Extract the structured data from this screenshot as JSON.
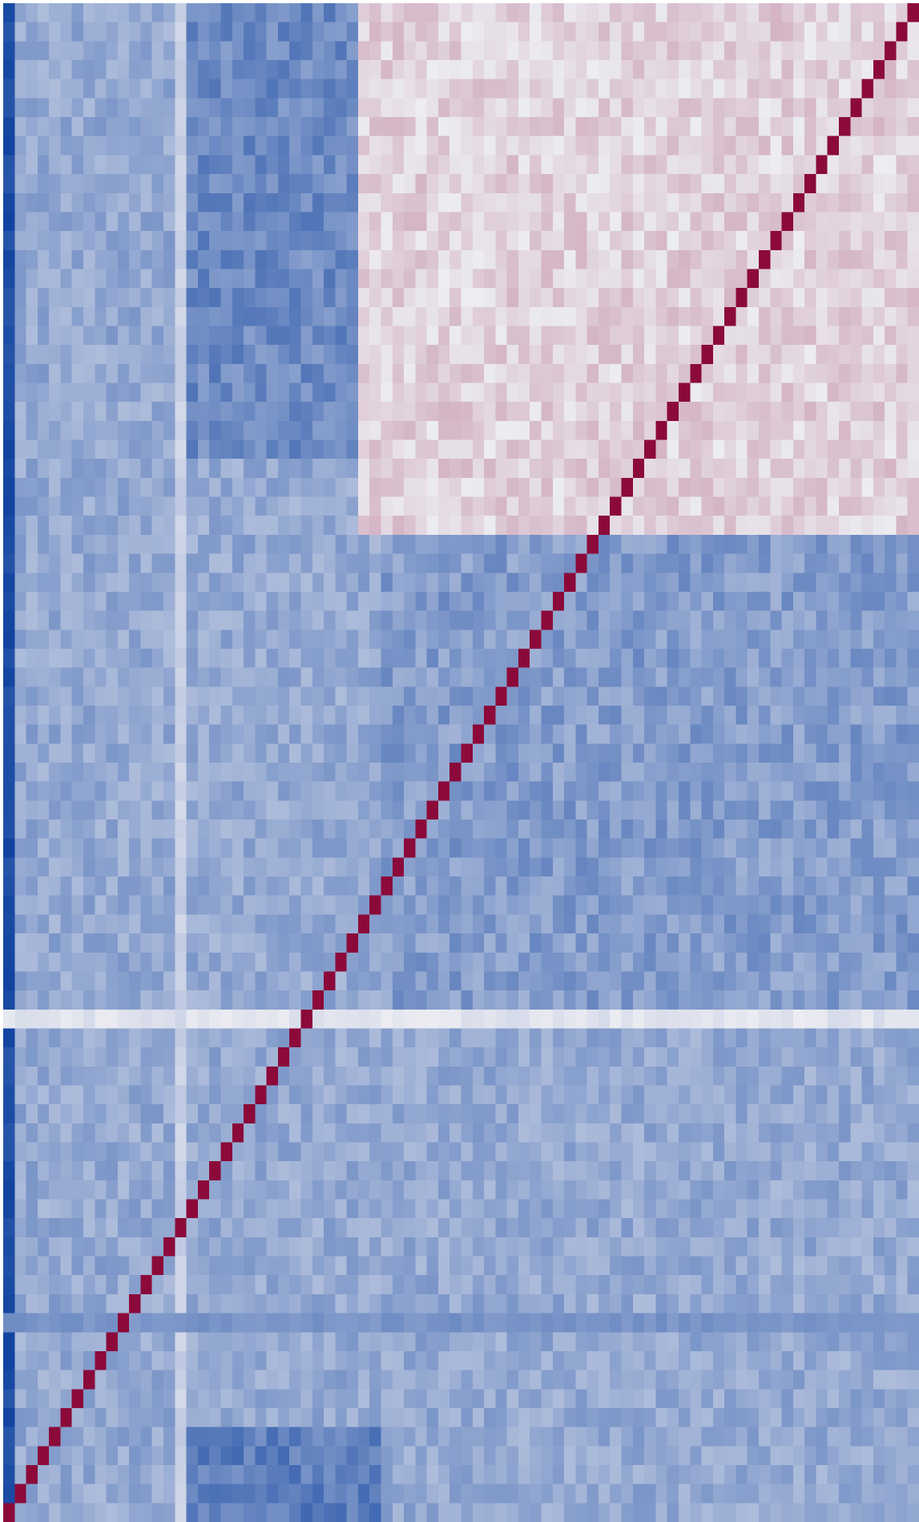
{
  "chart_data": {
    "type": "heatmap",
    "title": "",
    "xlabel": "",
    "ylabel": "",
    "size": 80,
    "value_range": [
      -1,
      1
    ],
    "diagonal_value": 1,
    "colors": {
      "negative": "#053b9c",
      "neutral": "#ececf2",
      "positive": "#8b0a3a",
      "background": "#ffffff"
    },
    "blocks": [
      {
        "name": "upper-right-positive-cluster",
        "rows": [
          0,
          28
        ],
        "cols": [
          31,
          80
        ],
        "value": 0.12
      },
      {
        "name": "lower-right-negative-cluster",
        "rows": [
          28,
          53
        ],
        "cols": [
          33,
          80
        ],
        "value": -0.45
      },
      {
        "name": "upper-middle-negative-band",
        "rows": [
          0,
          24
        ],
        "cols": [
          16,
          31
        ],
        "value": -0.55
      },
      {
        "name": "lower-band",
        "rows": [
          75,
          80
        ],
        "cols": [
          15,
          33
        ],
        "value": -0.62
      }
    ],
    "bands": [
      {
        "name": "left-edge-dark-column",
        "axis": "col",
        "index": 0,
        "value": -0.9
      },
      {
        "name": "light-row",
        "axis": "row",
        "index": 53,
        "value": -0.05
      },
      {
        "name": "light-column",
        "axis": "col",
        "index": 15,
        "value": -0.15
      },
      {
        "name": "dark-row",
        "axis": "row",
        "index": 69,
        "value": -0.5
      }
    ],
    "grid": false,
    "legend": "none"
  }
}
